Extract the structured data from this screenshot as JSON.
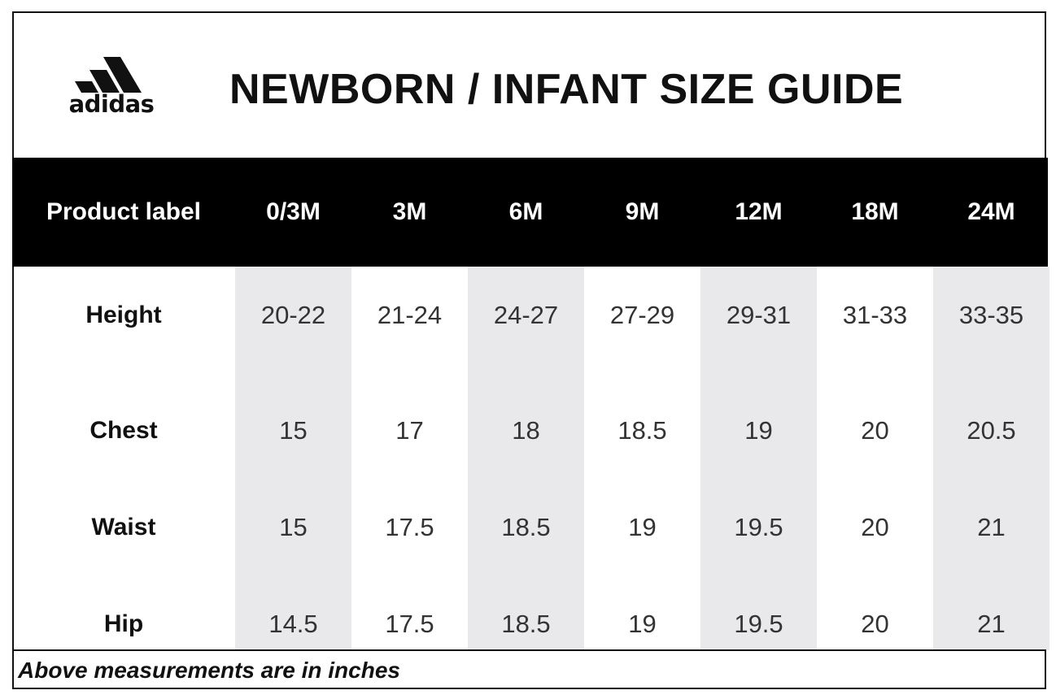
{
  "brand": {
    "name": "adidas"
  },
  "title": "NEWBORN / INFANT SIZE GUIDE",
  "table": {
    "header_label": "Product label",
    "sizes": [
      "0/3M",
      "3M",
      "6M",
      "9M",
      "12M",
      "18M",
      "24M"
    ],
    "rows": [
      {
        "label": "Height",
        "values": [
          "20-22",
          "21-24",
          "24-27",
          "27-29",
          "29-31",
          "31-33",
          "33-35"
        ]
      },
      {
        "label": "Chest",
        "values": [
          "15",
          "17",
          "18",
          "18.5",
          "19",
          "20",
          "20.5"
        ]
      },
      {
        "label": "Waist",
        "values": [
          "15",
          "17.5",
          "18.5",
          "19",
          "19.5",
          "20",
          "21"
        ]
      },
      {
        "label": "Hip",
        "values": [
          "14.5",
          "17.5",
          "18.5",
          "19",
          "19.5",
          "20",
          "21"
        ]
      }
    ]
  },
  "footer": "Above measurements are in inches",
  "colors": {
    "header_bg": "#000000",
    "column_shade": "#e9e9eb",
    "text": "#111111"
  }
}
